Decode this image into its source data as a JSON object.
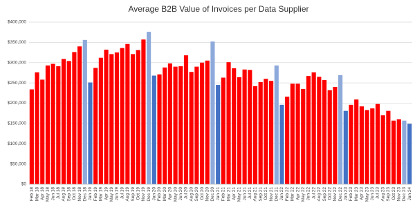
{
  "chart_data": {
    "type": "bar",
    "title": "Average B2B Value of Invoices per Data Supplier",
    "categories": [
      "Feb 18",
      "Mar 18",
      "Apr 18",
      "May 18",
      "Jun 18",
      "Jul 18",
      "Aug 18",
      "Sep 18",
      "Oct 18",
      "Nov 18",
      "Dec 18",
      "Jan 19",
      "Feb 19",
      "Mar 19",
      "Apr 19",
      "May 19",
      "Jun 19",
      "Jul 19",
      "Aug 19",
      "Sep 19",
      "Oct 19",
      "Nov 19",
      "Dec 19",
      "Jan 20",
      "Feb 20",
      "Mar 20",
      "Apr 20",
      "May 20",
      "Jun 20",
      "Jul 20",
      "Aug 20",
      "Sep 20",
      "Oct 20",
      "Nov 20",
      "Dec 20",
      "Jan 21",
      "Feb 21",
      "Mar 21",
      "Apr 21",
      "May 21",
      "Jun 21",
      "Jul 21",
      "Aug 21",
      "Sep 21",
      "Oct 21",
      "Nov 21",
      "Dec 21",
      "Jan 22",
      "Feb 22",
      "Mar 22",
      "Apr 22",
      "May 22",
      "Jun 22",
      "Jul 22",
      "Aug 22",
      "Sep 22",
      "Oct 22",
      "Nov 22",
      "Dec 22",
      "Jan 23",
      "Feb 23",
      "Mar 23",
      "Apr 23",
      "May 23",
      "Jun 23",
      "Jul 23",
      "Aug 23",
      "Sep 23",
      "Oct 23",
      "Nov 23",
      "Dec 23",
      "Jan 24"
    ],
    "values": [
      234000,
      276000,
      258000,
      293000,
      297000,
      291000,
      309000,
      304000,
      326000,
      340000,
      356000,
      251000,
      287000,
      312000,
      332000,
      321000,
      325000,
      336000,
      346000,
      321000,
      331000,
      357000,
      376000,
      268000,
      271000,
      288000,
      298000,
      290000,
      291000,
      318000,
      277000,
      290000,
      300000,
      305000,
      352000,
      245000,
      263000,
      301000,
      286000,
      264000,
      283000,
      282000,
      242000,
      252000,
      260000,
      255000,
      293000,
      196000,
      216000,
      248000,
      248000,
      235000,
      267000,
      276000,
      265000,
      257000,
      232000,
      240000,
      269000,
      181000,
      196000,
      209000,
      192000,
      183000,
      187000,
      198000,
      170000,
      181000,
      157000,
      160000,
      157000,
      149000
    ],
    "colors": [
      "#ff0000",
      "#ff0000",
      "#ff0000",
      "#ff0000",
      "#ff0000",
      "#ff0000",
      "#ff0000",
      "#ff0000",
      "#ff0000",
      "#ff0000",
      "#8eaadb",
      "#4472c4",
      "#ff0000",
      "#ff0000",
      "#ff0000",
      "#ff0000",
      "#ff0000",
      "#ff0000",
      "#ff0000",
      "#ff0000",
      "#ff0000",
      "#ff0000",
      "#8eaadb",
      "#4472c4",
      "#ff0000",
      "#ff0000",
      "#ff0000",
      "#ff0000",
      "#ff0000",
      "#ff0000",
      "#ff0000",
      "#ff0000",
      "#ff0000",
      "#ff0000",
      "#8eaadb",
      "#4472c4",
      "#ff0000",
      "#ff0000",
      "#ff0000",
      "#ff0000",
      "#ff0000",
      "#ff0000",
      "#ff0000",
      "#ff0000",
      "#ff0000",
      "#ff0000",
      "#8eaadb",
      "#4472c4",
      "#ff0000",
      "#ff0000",
      "#ff0000",
      "#ff0000",
      "#ff0000",
      "#ff0000",
      "#ff0000",
      "#ff0000",
      "#ff0000",
      "#ff0000",
      "#8eaadb",
      "#4472c4",
      "#ff0000",
      "#ff0000",
      "#ff0000",
      "#ff0000",
      "#ff0000",
      "#ff0000",
      "#ff0000",
      "#ff0000",
      "#ff0000",
      "#ff0000",
      "#8eaadb",
      "#4472c4"
    ],
    "ylim": [
      0,
      400000
    ],
    "yticks": [
      {
        "value": 0,
        "label": "$0"
      },
      {
        "value": 50000,
        "label": "$50,000"
      },
      {
        "value": 100000,
        "label": "$100,000"
      },
      {
        "value": 150000,
        "label": "$150,000"
      },
      {
        "value": 200000,
        "label": "$200,000"
      },
      {
        "value": 250000,
        "label": "$250,000"
      },
      {
        "value": 300000,
        "label": "$300,000"
      },
      {
        "value": 350000,
        "label": "$350,000"
      },
      {
        "value": 400000,
        "label": "$400,000"
      }
    ],
    "grid": true
  }
}
